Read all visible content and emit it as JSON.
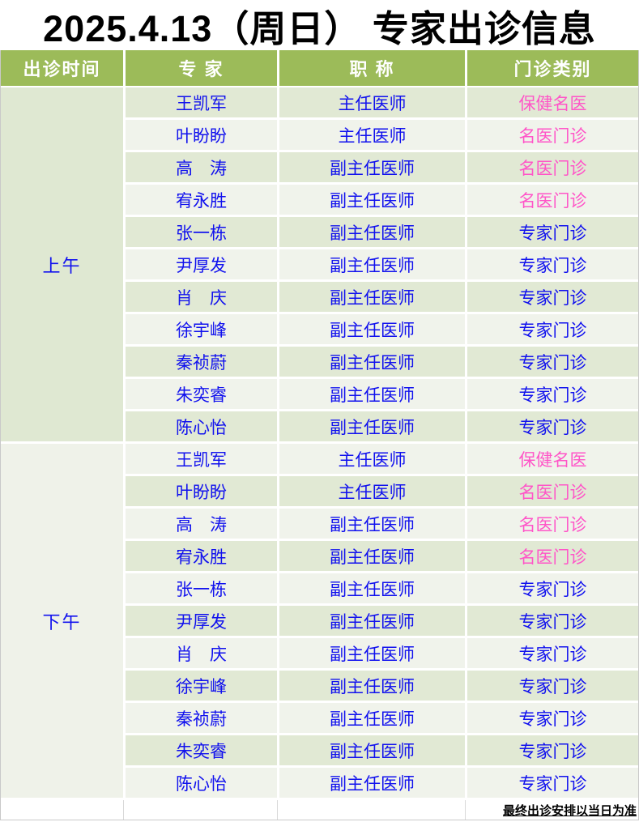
{
  "title": "2025.4.13（周日） 专家出诊信息",
  "footnote": "最终出诊安排以当日为准",
  "table": {
    "headers": [
      "出诊时间",
      "专 家",
      "职 称",
      "门诊类别"
    ],
    "sections": [
      {
        "time": "上午",
        "rows": [
          {
            "name": "王凯军",
            "title": "主任医师",
            "category": "保健名医",
            "category_color": "pink"
          },
          {
            "name": "叶盼盼",
            "title": "主任医师",
            "category": "名医门诊",
            "category_color": "pink"
          },
          {
            "name": "高　涛",
            "title": "副主任医师",
            "category": "名医门诊",
            "category_color": "pink"
          },
          {
            "name": "宥永胜",
            "title": "副主任医师",
            "category": "名医门诊",
            "category_color": "pink"
          },
          {
            "name": "张一栋",
            "title": "副主任医师",
            "category": "专家门诊",
            "category_color": "blue"
          },
          {
            "name": "尹厚发",
            "title": "副主任医师",
            "category": "专家门诊",
            "category_color": "blue"
          },
          {
            "name": "肖　庆",
            "title": "副主任医师",
            "category": "专家门诊",
            "category_color": "blue"
          },
          {
            "name": "徐宇峰",
            "title": "副主任医师",
            "category": "专家门诊",
            "category_color": "blue"
          },
          {
            "name": "秦祯蔚",
            "title": "副主任医师",
            "category": "专家门诊",
            "category_color": "blue"
          },
          {
            "name": "朱奕睿",
            "title": "副主任医师",
            "category": "专家门诊",
            "category_color": "blue"
          },
          {
            "name": "陈心怡",
            "title": "副主任医师",
            "category": "专家门诊",
            "category_color": "blue"
          }
        ]
      },
      {
        "time": "下午",
        "rows": [
          {
            "name": "王凯军",
            "title": "主任医师",
            "category": "保健名医",
            "category_color": "pink"
          },
          {
            "name": "叶盼盼",
            "title": "主任医师",
            "category": "名医门诊",
            "category_color": "pink"
          },
          {
            "name": "高　涛",
            "title": "副主任医师",
            "category": "名医门诊",
            "category_color": "pink"
          },
          {
            "name": "宥永胜",
            "title": "副主任医师",
            "category": "名医门诊",
            "category_color": "pink"
          },
          {
            "name": "张一栋",
            "title": "副主任医师",
            "category": "专家门诊",
            "category_color": "blue"
          },
          {
            "name": "尹厚发",
            "title": "副主任医师",
            "category": "专家门诊",
            "category_color": "blue"
          },
          {
            "name": "肖　庆",
            "title": "副主任医师",
            "category": "专家门诊",
            "category_color": "blue"
          },
          {
            "name": "徐宇峰",
            "title": "副主任医师",
            "category": "专家门诊",
            "category_color": "blue"
          },
          {
            "name": "秦祯蔚",
            "title": "副主任医师",
            "category": "专家门诊",
            "category_color": "blue"
          },
          {
            "name": "朱奕睿",
            "title": "副主任医师",
            "category": "专家门诊",
            "category_color": "blue"
          },
          {
            "name": "陈心怡",
            "title": "副主任医师",
            "category": "专家门诊",
            "category_color": "blue"
          }
        ]
      }
    ]
  },
  "colors": {
    "header_bg": "#9CBB59",
    "header_text": "#FFFFFF",
    "row_green": "#E1E9D4",
    "row_light": "#F0F3EB",
    "time_am_bg": "#DFE8D2",
    "time_pm_bg": "#EFF2E9",
    "blue": "#1111EE",
    "pink": "#FF55C8",
    "title_color": "#000000"
  }
}
